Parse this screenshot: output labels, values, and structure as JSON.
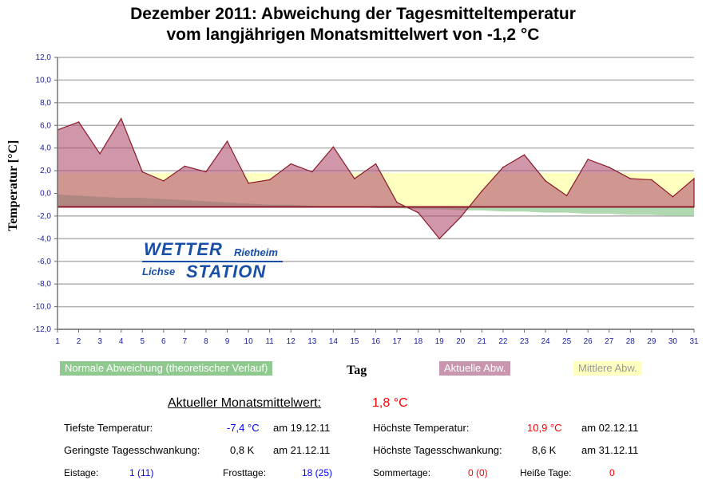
{
  "chart_data": {
    "type": "area",
    "title": [
      "Dezember 2011: Abweichung der Tagesmitteltemperatur",
      "vom langjährigen Monatsmittelwert von -1,2 °C"
    ],
    "xlabel": "Tag",
    "ylabel": "Temperatur [°C]",
    "ylim": [
      -12,
      12
    ],
    "xlim": [
      1,
      31
    ],
    "yticks": [
      "12,0",
      "10,0",
      "8,0",
      "6,0",
      "4,0",
      "2,0",
      "0,0",
      "-2,0",
      "-4,0",
      "-6,0",
      "-8,0",
      "-10,0",
      "-12,0"
    ],
    "ytick_values": [
      12,
      10,
      8,
      6,
      4,
      2,
      0,
      -2,
      -4,
      -6,
      -8,
      -10,
      -12
    ],
    "x": [
      1,
      2,
      3,
      4,
      5,
      6,
      7,
      8,
      9,
      10,
      11,
      12,
      13,
      14,
      15,
      16,
      17,
      18,
      19,
      20,
      21,
      22,
      23,
      24,
      25,
      26,
      27,
      28,
      29,
      30,
      31
    ],
    "baseline": -1.2,
    "series": [
      {
        "name": "Normale Abweichung (theoretischer Verlauf)",
        "color": "#8fc98f",
        "values": [
          -0.1,
          -0.2,
          -0.3,
          -0.4,
          -0.4,
          -0.5,
          -0.6,
          -0.7,
          -0.8,
          -0.9,
          -1.0,
          -1.0,
          -1.1,
          -1.2,
          -1.2,
          -1.3,
          -1.3,
          -1.4,
          -1.4,
          -1.5,
          -1.5,
          -1.6,
          -1.6,
          -1.7,
          -1.7,
          -1.8,
          -1.8,
          -1.9,
          -1.9,
          -2.0,
          -2.0
        ]
      },
      {
        "name": "Aktuelle Abw.",
        "color": "#c996b0",
        "values": [
          5.6,
          6.3,
          3.5,
          6.6,
          1.9,
          1.1,
          2.4,
          1.9,
          4.6,
          0.9,
          1.2,
          2.6,
          1.9,
          4.1,
          1.3,
          2.6,
          -0.8,
          -1.7,
          -4.0,
          -2.1,
          0.2,
          2.3,
          3.4,
          1.1,
          -0.2,
          3.0,
          2.3,
          1.3,
          1.2,
          -0.3,
          1.3
        ]
      },
      {
        "name": "Mittlere Abw.",
        "color": "#ffffc0",
        "value": 1.8
      }
    ],
    "grid": true,
    "legend": "bottom"
  },
  "logo": {
    "line1": "WETTER",
    "line1b": "Rietheim",
    "line2a": "Lichse",
    "line2": "STATION"
  },
  "stats": {
    "monthly_label": "Aktueller Monatsmittelwert:",
    "monthly_value": "1,8 °C",
    "min_label": "Tiefste Temperatur:",
    "min_value": "-7,4 °C",
    "min_date": "am 19.12.11",
    "max_label": "Höchste Temperatur:",
    "max_value": "10,9 °C",
    "max_date": "am 02.12.11",
    "minrange_label": "Geringste Tagesschwankung:",
    "minrange_value": "0,8 K",
    "minrange_date": "am 21.12.11",
    "maxrange_label": "Höchste Tagesschwankung:",
    "maxrange_value": "8,6 K",
    "maxrange_date": "am 31.12.11",
    "ice_label": "Eistage:",
    "ice_value": "1 (11)",
    "frost_label": "Frosttage:",
    "frost_value": "18 (25)",
    "summer_label": "Sommertage:",
    "summer_value": "0 (0)",
    "hot_label": "Heiße Tage:",
    "hot_value": "0"
  }
}
